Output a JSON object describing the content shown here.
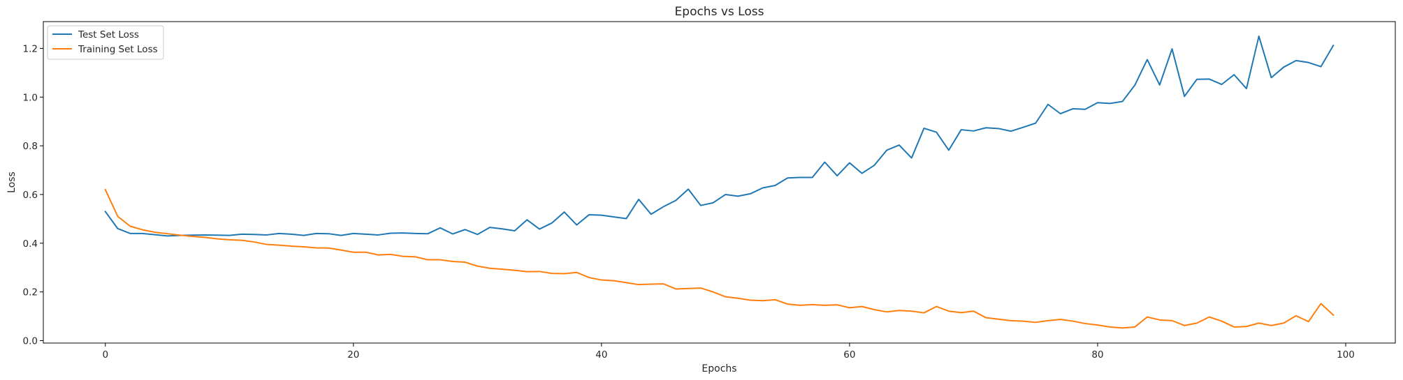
{
  "chart_data": {
    "type": "line",
    "title": "Epochs vs Loss",
    "xlabel": "Epochs",
    "ylabel": "Loss",
    "xlim": [
      -5,
      104
    ],
    "ylim": [
      -0.01,
      1.31
    ],
    "xticks": [
      0,
      20,
      40,
      60,
      80,
      100
    ],
    "yticks": [
      0.0,
      0.2,
      0.4,
      0.6,
      0.8,
      1.0,
      1.2
    ],
    "grid": false,
    "legend": "top-left",
    "series": [
      {
        "name": "Test Set Loss",
        "color": "#1f77b4",
        "values": [
          0.53,
          0.46,
          0.44,
          0.44,
          0.435,
          0.43,
          0.432,
          0.433,
          0.434,
          0.433,
          0.432,
          0.437,
          0.436,
          0.434,
          0.44,
          0.437,
          0.432,
          0.44,
          0.439,
          0.432,
          0.44,
          0.437,
          0.434,
          0.441,
          0.442,
          0.44,
          0.439,
          0.463,
          0.438,
          0.456,
          0.436,
          0.465,
          0.459,
          0.451,
          0.496,
          0.458,
          0.483,
          0.528,
          0.475,
          0.517,
          0.515,
          0.508,
          0.501,
          0.58,
          0.519,
          0.55,
          0.576,
          0.622,
          0.555,
          0.566,
          0.6,
          0.593,
          0.603,
          0.627,
          0.637,
          0.668,
          0.67,
          0.67,
          0.733,
          0.677,
          0.73,
          0.687,
          0.72,
          0.782,
          0.803,
          0.75,
          0.872,
          0.856,
          0.782,
          0.866,
          0.861,
          0.874,
          0.871,
          0.86,
          0.876,
          0.893,
          0.97,
          0.932,
          0.952,
          0.95,
          0.977,
          0.974,
          0.982,
          1.049,
          1.154,
          1.05,
          1.198,
          1.003,
          1.073,
          1.074,
          1.052,
          1.092,
          1.035,
          1.25,
          1.08,
          1.123,
          1.15,
          1.142,
          1.125,
          1.212
        ]
      },
      {
        "name": "Training Set Loss",
        "color": "#ff7f0e",
        "values": [
          0.62,
          0.51,
          0.47,
          0.455,
          0.445,
          0.439,
          0.433,
          0.428,
          0.424,
          0.418,
          0.414,
          0.412,
          0.405,
          0.395,
          0.392,
          0.388,
          0.385,
          0.381,
          0.38,
          0.372,
          0.363,
          0.363,
          0.352,
          0.354,
          0.346,
          0.344,
          0.332,
          0.332,
          0.325,
          0.322,
          0.306,
          0.297,
          0.293,
          0.289,
          0.283,
          0.284,
          0.276,
          0.275,
          0.28,
          0.259,
          0.249,
          0.246,
          0.238,
          0.23,
          0.232,
          0.233,
          0.212,
          0.214,
          0.216,
          0.2,
          0.18,
          0.174,
          0.166,
          0.164,
          0.168,
          0.15,
          0.145,
          0.148,
          0.145,
          0.147,
          0.135,
          0.14,
          0.127,
          0.118,
          0.124,
          0.121,
          0.114,
          0.14,
          0.121,
          0.115,
          0.121,
          0.094,
          0.088,
          0.082,
          0.08,
          0.075,
          0.082,
          0.087,
          0.08,
          0.07,
          0.064,
          0.056,
          0.052,
          0.056,
          0.097,
          0.085,
          0.082,
          0.062,
          0.072,
          0.097,
          0.08,
          0.056,
          0.058,
          0.072,
          0.062,
          0.072,
          0.102,
          0.078,
          0.152,
          0.105
        ]
      }
    ]
  }
}
